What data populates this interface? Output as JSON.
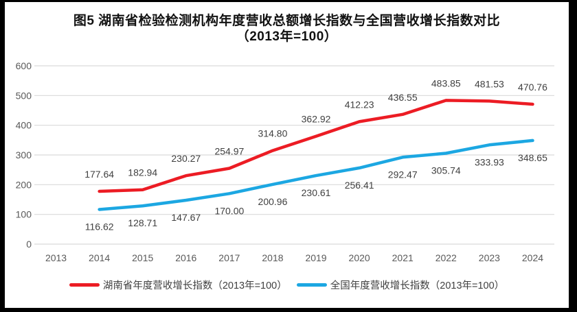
{
  "frame": {
    "background": "#ffffff",
    "border_color": "#000000"
  },
  "chart_data": {
    "type": "line",
    "title": "图5 湖南省检验检测机构年度营收总额增长指数与全国营收增长指数对比",
    "subtitle": "（2013年=100）",
    "categories": [
      "2013",
      "2014",
      "2015",
      "2016",
      "2017",
      "2018",
      "2019",
      "2020",
      "2021",
      "2022",
      "2023",
      "2024"
    ],
    "ylim": [
      0,
      600
    ],
    "yticks": [
      0,
      100,
      200,
      300,
      400,
      500,
      600
    ],
    "grid": "horizontal",
    "gridline_color": "#d9d9d9",
    "axis_label_color": "#595959",
    "data_label_color": "#3f3f3f",
    "legend_position": "bottom",
    "series": [
      {
        "name": "湖南省年度营收增长指数（2013年=100）",
        "color": "#ec1c24",
        "label_position": "above",
        "values": [
          null,
          177.64,
          182.94,
          230.27,
          254.97,
          314.8,
          362.92,
          412.23,
          436.55,
          483.85,
          481.53,
          470.76
        ],
        "labels": [
          "",
          "177.64",
          "182.94",
          "230.27",
          "254.97",
          "314.80",
          "362.92",
          "412.23",
          "436.55",
          "483.85",
          "481.53",
          "470.76"
        ]
      },
      {
        "name": "全国年度营收增长指数（2013年=100）",
        "color": "#1ca7e2",
        "label_position": "below",
        "values": [
          null,
          116.62,
          128.71,
          147.67,
          170.0,
          200.96,
          230.61,
          256.41,
          292.47,
          305.74,
          333.93,
          348.65
        ],
        "labels": [
          "",
          "116.62",
          "128.71",
          "147.67",
          "170.00",
          "200.96",
          "230.61",
          "256.41",
          "292.47",
          "305.74",
          "333.93",
          "348.65"
        ]
      }
    ]
  }
}
